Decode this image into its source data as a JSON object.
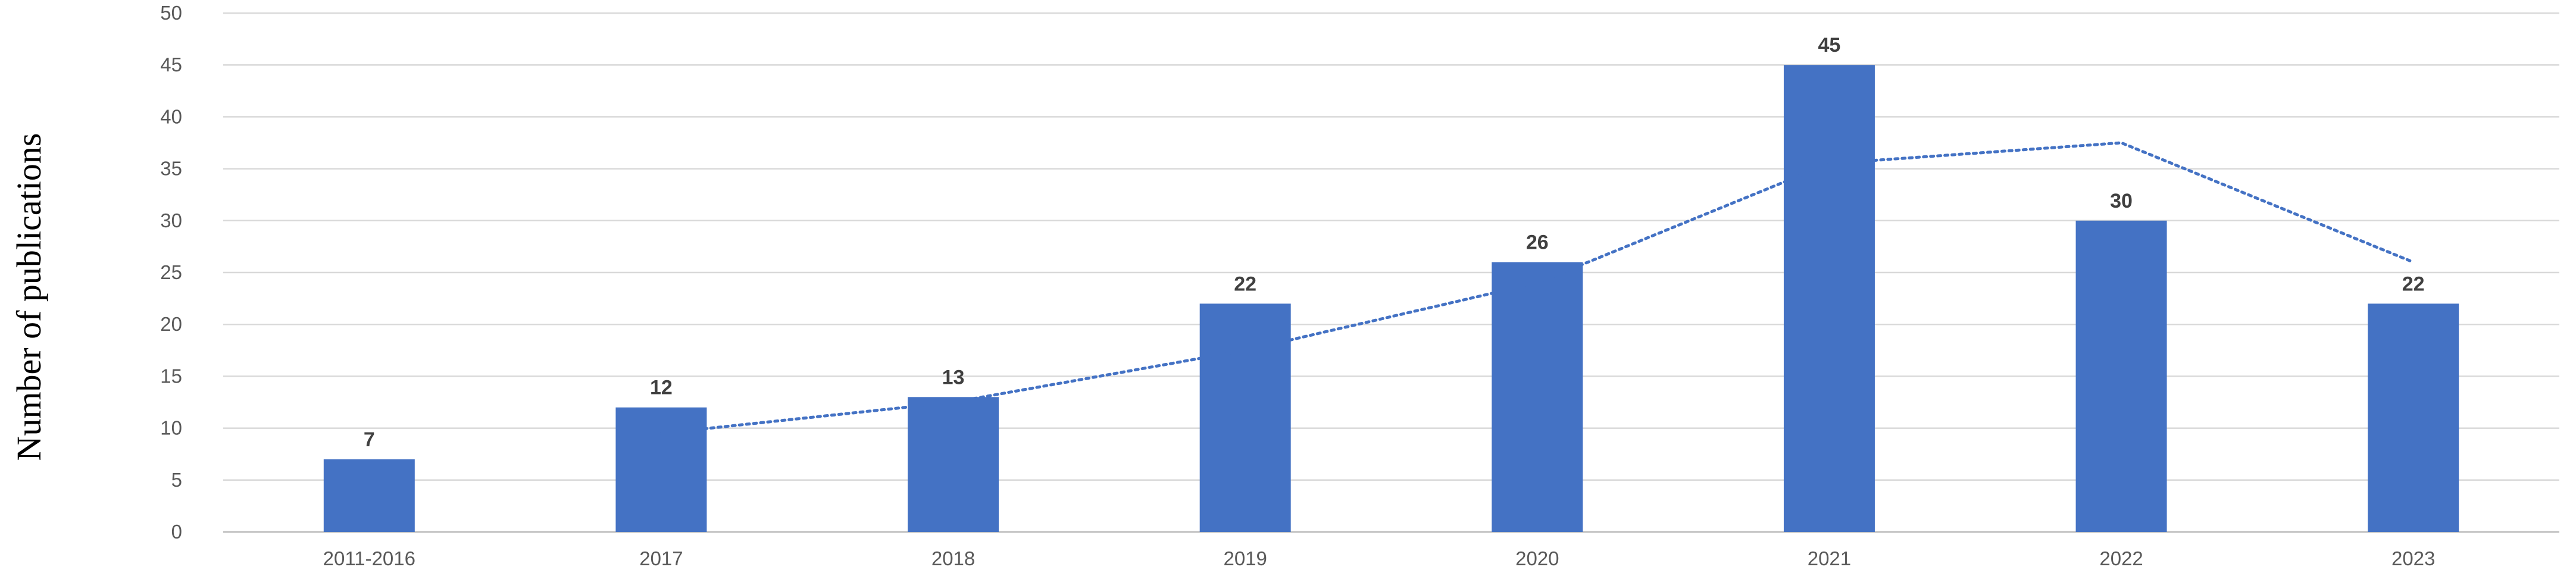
{
  "chart_data": {
    "type": "bar",
    "title": "",
    "xlabel": "",
    "ylabel": "Number of publications",
    "categories": [
      "2011-2016",
      "2017",
      "2018",
      "2019",
      "2020",
      "2021",
      "2022",
      "2023"
    ],
    "series": [
      {
        "values": [
          7,
          12,
          13,
          22,
          26,
          45,
          30,
          22
        ]
      }
    ],
    "trendline": {
      "type": "moving-average",
      "period": 2,
      "style": "dotted",
      "values": [
        null,
        9.5,
        12.5,
        17.5,
        24,
        35.5,
        37.5,
        26
      ]
    },
    "ylim": [
      0,
      50
    ],
    "yticks": [
      0,
      5,
      10,
      15,
      20,
      25,
      30,
      35,
      40,
      45,
      50
    ],
    "grid": true,
    "legend": "none",
    "colors": {
      "bar": "#4472c4",
      "trendline": "#4472c4",
      "grid": "#d9d9d9",
      "tick_label": "#595959",
      "data_label": "#404040"
    }
  }
}
